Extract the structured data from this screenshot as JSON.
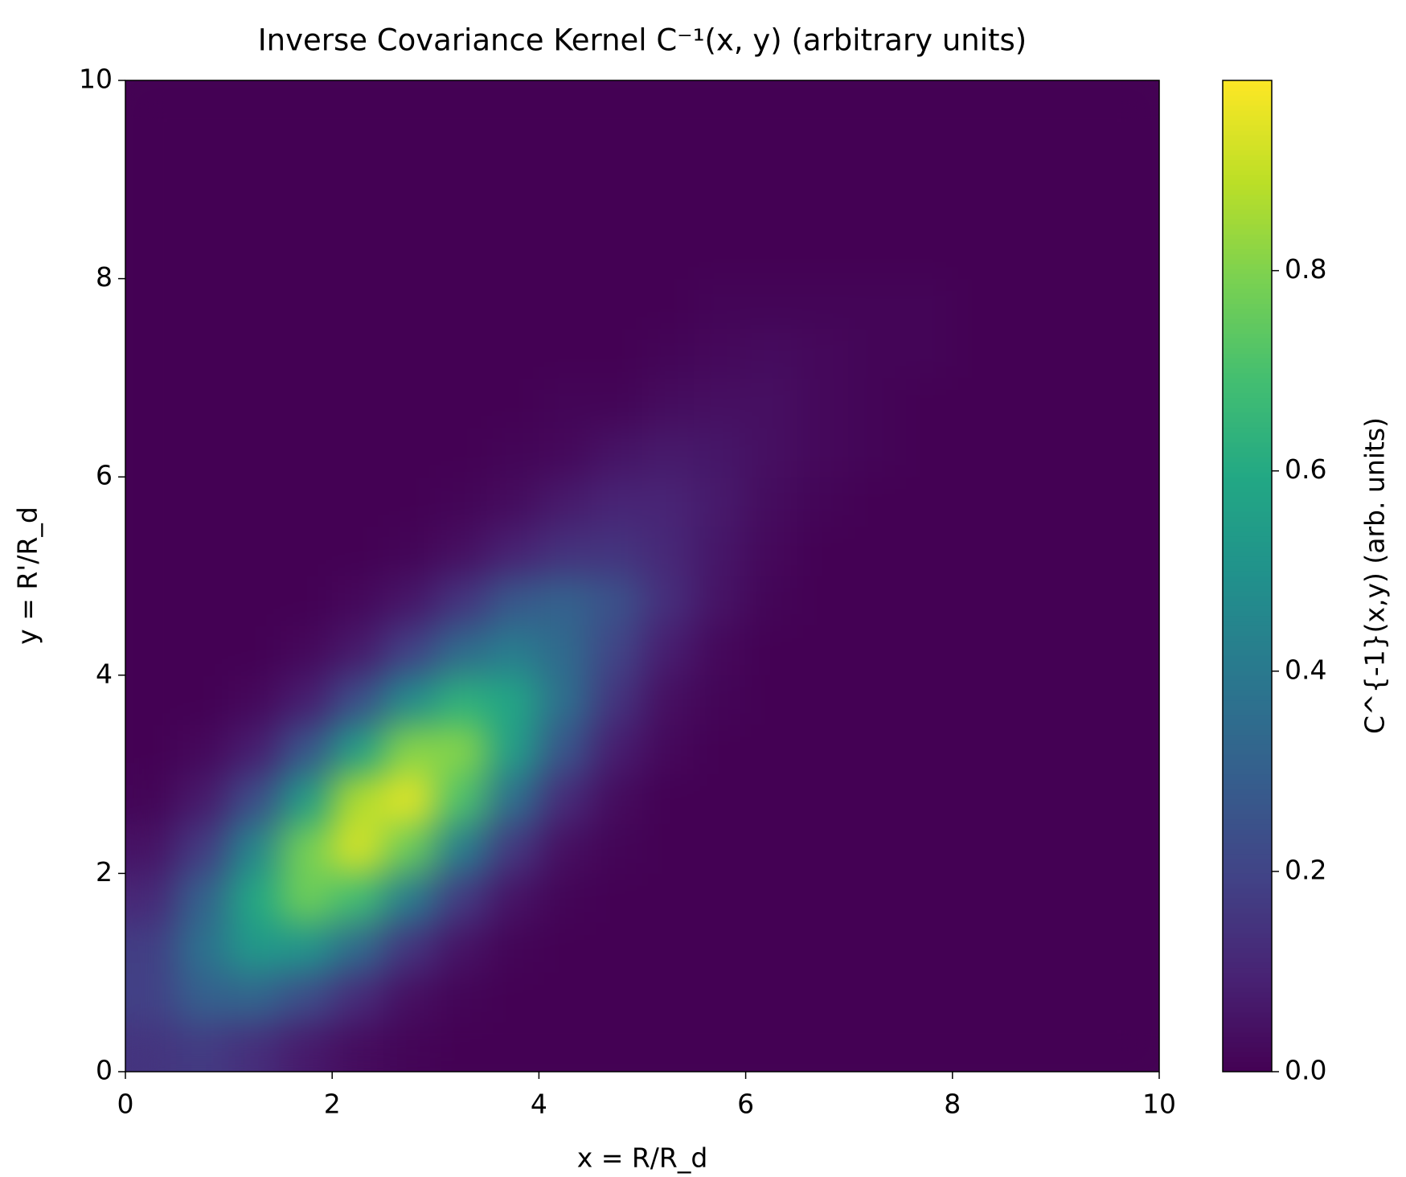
{
  "chart_data": {
    "type": "heatmap",
    "title": "Inverse Covariance Kernel C⁻¹(x, y) (arbitrary units)",
    "x_label": "x = R/R_d",
    "y_label": "y = R'/R_d",
    "xlim": [
      0,
      10
    ],
    "ylim": [
      0,
      10
    ],
    "xticks": [
      0,
      2,
      4,
      6,
      8,
      10
    ],
    "yticks": [
      0,
      2,
      4,
      6,
      8,
      10
    ],
    "colormap": "viridis",
    "colorbar": {
      "label": "C^{-1}(x,y) (arb. units)",
      "lim": [
        0,
        0.99
      ],
      "ticks": [
        {
          "value": 0,
          "label": "0.0"
        },
        0.2,
        0.4,
        0.6,
        0.8
      ]
    },
    "z": [
      [
        0.15,
        0.17,
        0.13,
        0.07,
        0.03,
        0.01,
        0,
        0,
        0,
        0,
        0,
        0,
        0,
        0,
        0,
        0,
        0,
        0,
        0,
        0
      ],
      [
        0.19,
        0.3,
        0.32,
        0.23,
        0.12,
        0.04,
        0.01,
        0,
        0,
        0,
        0,
        0,
        0,
        0,
        0,
        0,
        0,
        0,
        0,
        0
      ],
      [
        0.18,
        0.37,
        0.53,
        0.51,
        0.34,
        0.15,
        0.05,
        0.01,
        0,
        0,
        0,
        0,
        0,
        0,
        0,
        0,
        0,
        0,
        0,
        0
      ],
      [
        0.11,
        0.31,
        0.59,
        0.77,
        0.68,
        0.41,
        0.17,
        0.05,
        0.01,
        0,
        0,
        0,
        0,
        0,
        0,
        0,
        0,
        0,
        0,
        0
      ],
      [
        0.05,
        0.17,
        0.45,
        0.78,
        0.93,
        0.76,
        0.42,
        0.16,
        0.04,
        0.01,
        0,
        0,
        0,
        0,
        0,
        0,
        0,
        0,
        0,
        0
      ],
      [
        0.01,
        0.07,
        0.23,
        0.54,
        0.87,
        0.95,
        0.71,
        0.36,
        0.12,
        0.03,
        0,
        0,
        0,
        0,
        0,
        0,
        0,
        0,
        0,
        0
      ],
      [
        0,
        0.02,
        0.08,
        0.26,
        0.55,
        0.81,
        0.81,
        0.55,
        0.26,
        0.08,
        0.02,
        0,
        0,
        0,
        0,
        0,
        0,
        0,
        0,
        0
      ],
      [
        0,
        0,
        0.02,
        0.08,
        0.24,
        0.47,
        0.63,
        0.58,
        0.36,
        0.15,
        0.04,
        0.01,
        0,
        0,
        0,
        0,
        0,
        0,
        0,
        0
      ],
      [
        0,
        0,
        0,
        0.02,
        0.07,
        0.19,
        0.34,
        0.41,
        0.34,
        0.2,
        0.08,
        0.02,
        0,
        0,
        0,
        0,
        0,
        0,
        0,
        0
      ],
      [
        0,
        0,
        0,
        0,
        0.02,
        0.06,
        0.15,
        0.27,
        0.31,
        0.25,
        0.13,
        0.05,
        0.01,
        0,
        0,
        0,
        0,
        0,
        0,
        0
      ],
      [
        0,
        0,
        0,
        0,
        0,
        0.01,
        0.04,
        0.09,
        0.14,
        0.15,
        0.11,
        0.06,
        0.02,
        0,
        0,
        0,
        0,
        0,
        0,
        0
      ],
      [
        0,
        0,
        0,
        0,
        0,
        0,
        0.01,
        0.03,
        0.07,
        0.1,
        0.1,
        0.07,
        0.03,
        0.01,
        0,
        0,
        0,
        0,
        0,
        0
      ],
      [
        0,
        0,
        0,
        0,
        0,
        0,
        0,
        0.01,
        0.02,
        0.05,
        0.07,
        0.06,
        0.04,
        0.02,
        0.01,
        0,
        0,
        0,
        0,
        0
      ],
      [
        0,
        0,
        0,
        0,
        0,
        0,
        0,
        0,
        0.01,
        0.01,
        0.03,
        0.04,
        0.04,
        0.02,
        0.01,
        0,
        0,
        0,
        0,
        0
      ],
      [
        0,
        0,
        0,
        0,
        0,
        0,
        0,
        0,
        0,
        0,
        0.01,
        0.02,
        0.03,
        0.02,
        0.01,
        0.01,
        0,
        0,
        0,
        0
      ],
      [
        0,
        0,
        0,
        0,
        0,
        0,
        0,
        0,
        0,
        0,
        0,
        0.01,
        0.01,
        0.01,
        0.01,
        0.01,
        0,
        0,
        0,
        0
      ],
      [
        0,
        0,
        0,
        0,
        0,
        0,
        0,
        0,
        0,
        0,
        0,
        0,
        0,
        0,
        0,
        0,
        0,
        0,
        0,
        0
      ],
      [
        0,
        0,
        0,
        0,
        0,
        0,
        0,
        0,
        0,
        0,
        0,
        0,
        0,
        0,
        0,
        0,
        0,
        0,
        0,
        0
      ],
      [
        0,
        0,
        0,
        0,
        0,
        0,
        0,
        0,
        0,
        0,
        0,
        0,
        0,
        0,
        0,
        0,
        0,
        0,
        0,
        0
      ],
      [
        0,
        0,
        0,
        0,
        0,
        0,
        0,
        0,
        0,
        0,
        0,
        0,
        0,
        0,
        0,
        0,
        0,
        0,
        0,
        0
      ]
    ]
  }
}
